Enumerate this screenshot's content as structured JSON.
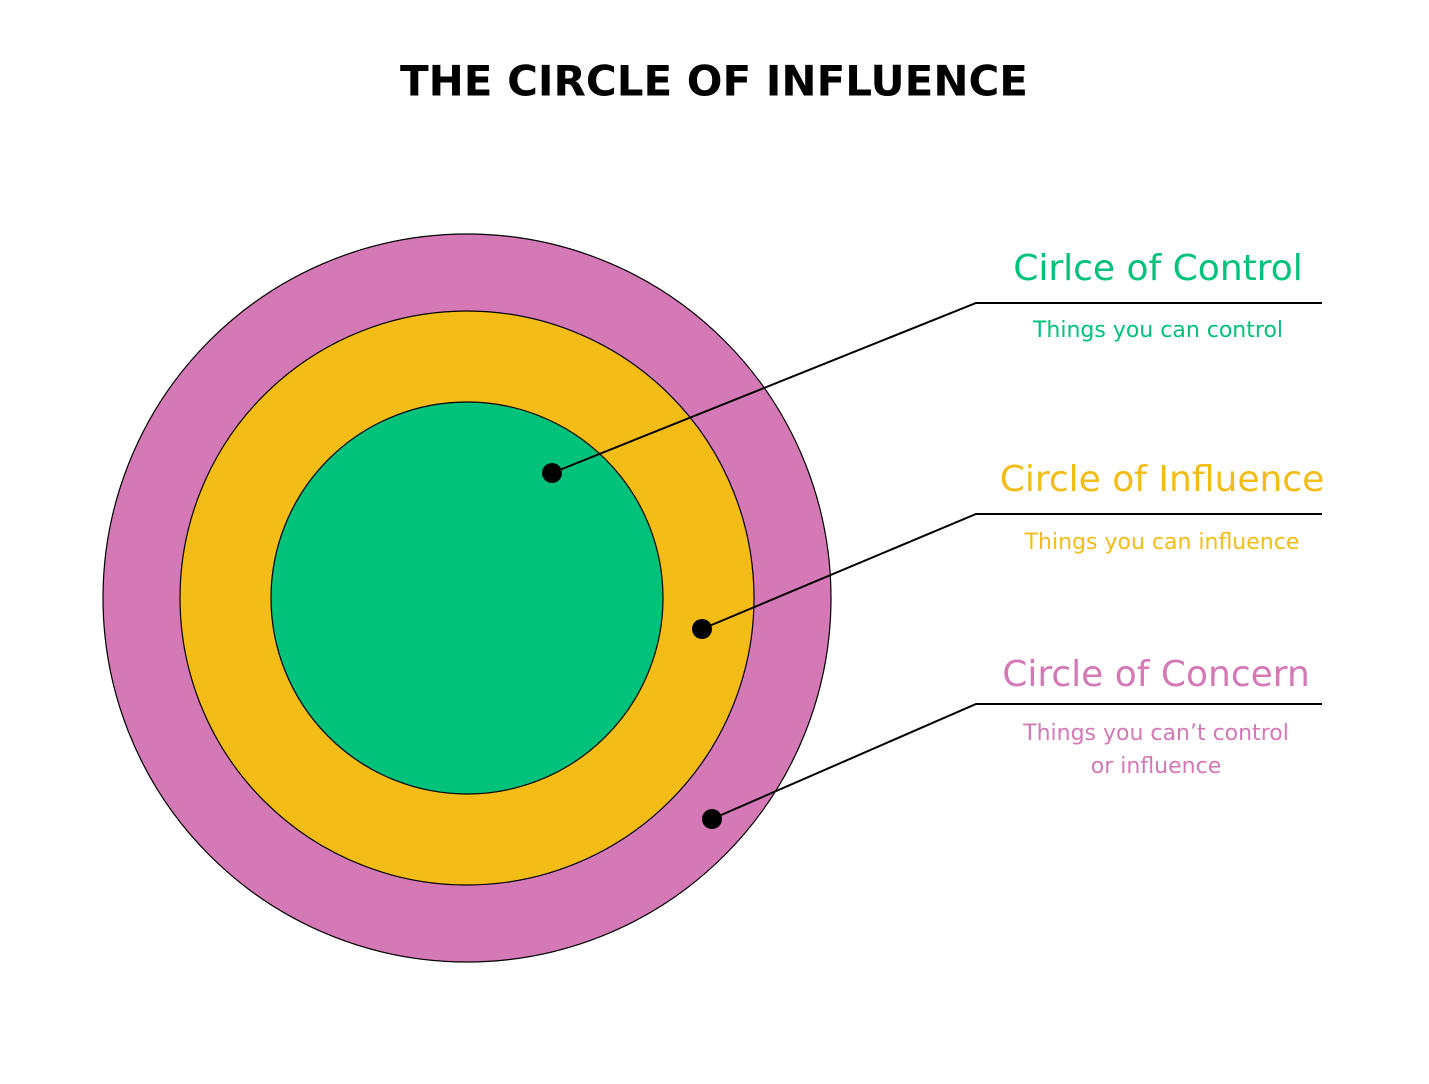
{
  "title": "THE CIRCLE OF INFLUENCE",
  "items": [
    {
      "label": "Cirlce of Control",
      "description": [
        "Things you can control"
      ]
    },
    {
      "label": "Circle of Influence",
      "description": [
        "Things you can influence"
      ]
    },
    {
      "label": "Circle of Concern",
      "description": [
        "Things you can’t control",
        "or influence"
      ]
    }
  ]
}
